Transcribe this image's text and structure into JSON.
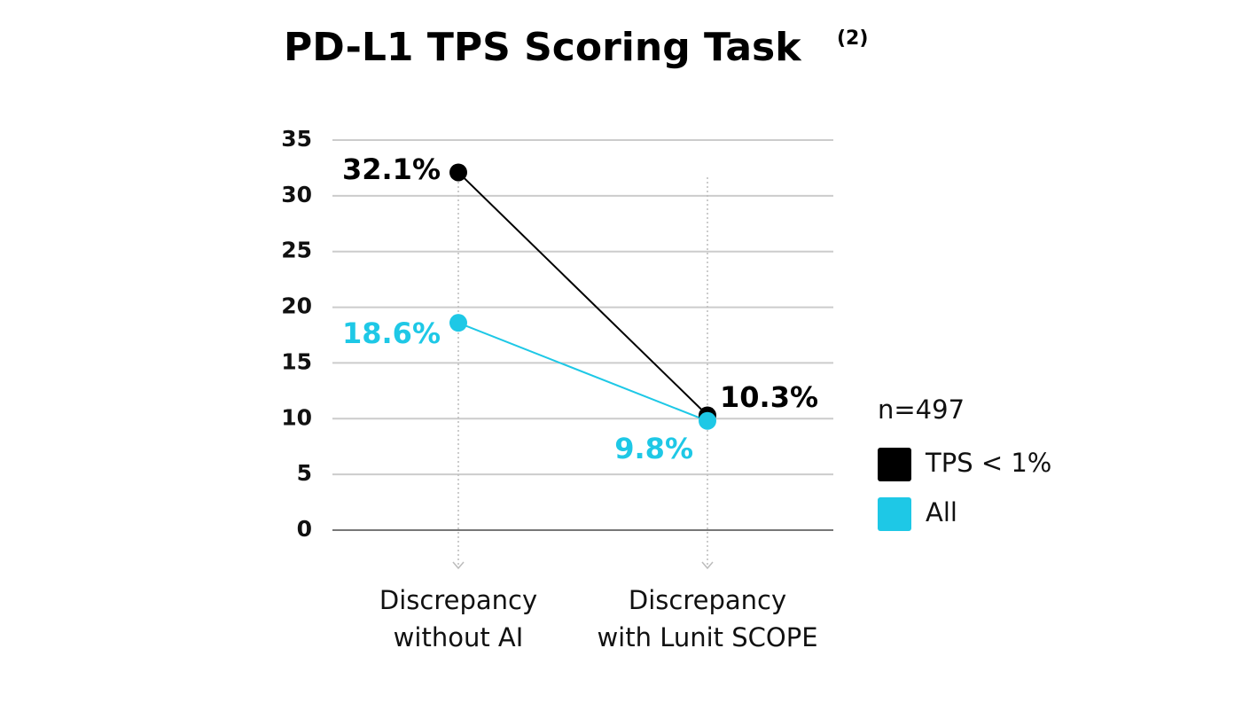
{
  "chart_data": {
    "type": "line",
    "title": "PD-L1 TPS Scoring Task",
    "title_note": "(2)",
    "categories": [
      "Discrepancy\nwithout AI",
      "Discrepancy\nwith Lunit SCOPE"
    ],
    "series": [
      {
        "name": "TPS < 1%",
        "color": "#000000",
        "values": [
          32.1,
          10.3
        ],
        "value_labels": [
          "32.1%",
          "10.3%"
        ]
      },
      {
        "name": "All",
        "color": "#1ec8e6",
        "values": [
          18.6,
          9.8
        ],
        "value_labels": [
          "18.6%",
          "9.8%"
        ]
      }
    ],
    "legend_title": "n=497",
    "ylim": [
      0,
      35
    ],
    "yticks": [
      0,
      5,
      10,
      15,
      20,
      25,
      30,
      35
    ],
    "grid": true
  }
}
